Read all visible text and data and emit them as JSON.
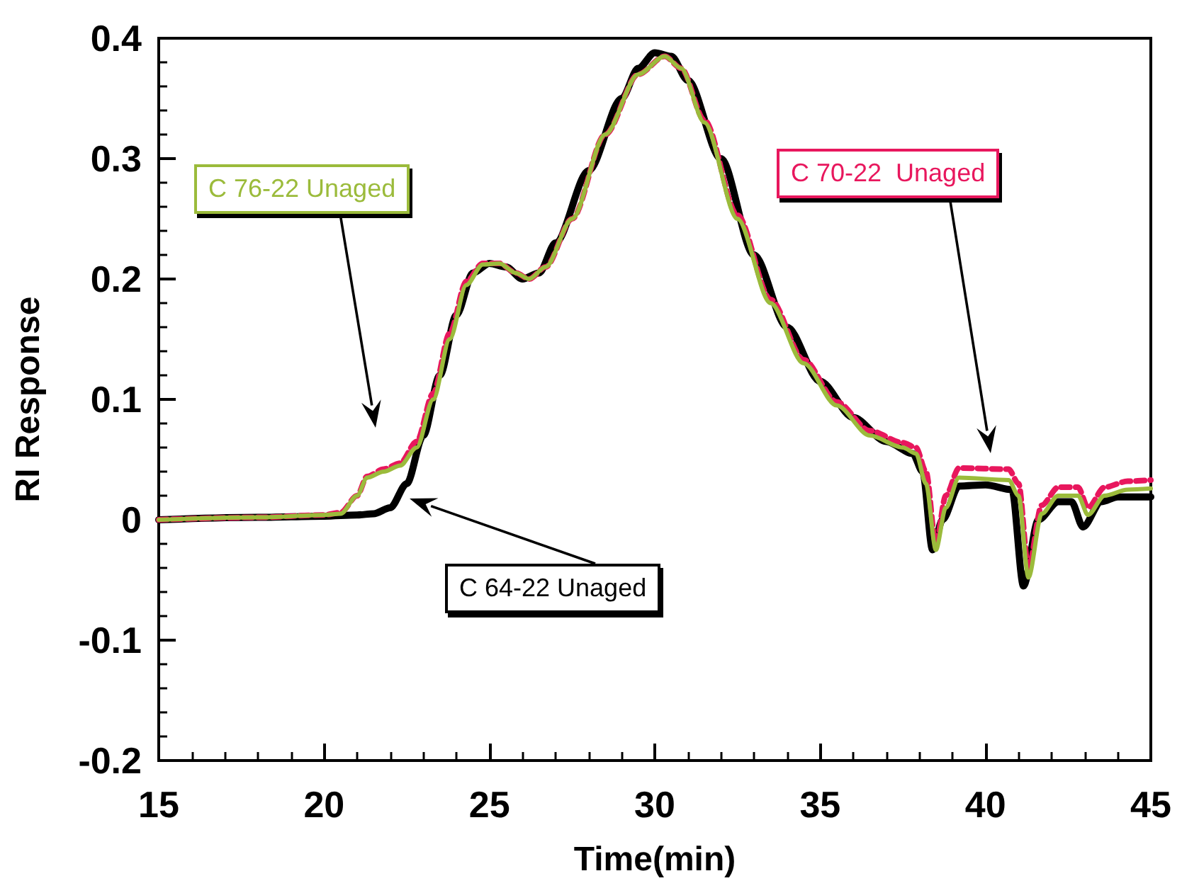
{
  "chart_data": {
    "type": "line",
    "xlabel": "Time(min)",
    "ylabel": "RI Response",
    "xlim": [
      15,
      45
    ],
    "xticks": [
      15,
      20,
      25,
      30,
      35,
      40,
      45
    ],
    "ylim": [
      -0.2,
      0.4
    ],
    "yticks": [
      -0.2,
      -0.1,
      0,
      0.1,
      0.2,
      0.3,
      0.4
    ],
    "grid": false,
    "legend": false,
    "marker": "none",
    "series": [
      {
        "name": "C 64-22 Unaged",
        "color": "#000000",
        "line_style": "solid",
        "x": [
          15,
          18,
          20,
          21,
          21.5,
          22,
          22.5,
          23,
          23.5,
          24,
          24.5,
          25,
          25.5,
          26,
          26.5,
          27,
          28,
          29,
          29.5,
          30,
          30.5,
          31,
          32,
          33,
          34,
          35,
          36,
          37,
          37.8,
          38.1,
          38.4,
          38.7,
          39.2,
          40,
          40.8,
          41.15,
          41.6,
          42.2,
          42.6,
          42.95,
          43.5,
          44,
          45
        ],
        "values": [
          0,
          0.002,
          0.003,
          0.004,
          0.005,
          0.01,
          0.03,
          0.07,
          0.12,
          0.17,
          0.205,
          0.213,
          0.21,
          0.2,
          0.205,
          0.23,
          0.29,
          0.35,
          0.375,
          0.388,
          0.385,
          0.365,
          0.3,
          0.22,
          0.16,
          0.115,
          0.085,
          0.065,
          0.055,
          0.04,
          -0.025,
          0,
          0.028,
          0.029,
          0.025,
          -0.055,
          0,
          0.015,
          0.015,
          -0.006,
          0.015,
          0.019,
          0.019
        ]
      },
      {
        "name": "C 70-22  Unaged",
        "color": "#e8175d",
        "line_style": "dashed",
        "x": [
          15,
          18,
          20,
          20.5,
          21,
          21.3,
          21.8,
          22.3,
          22.8,
          23.3,
          23.8,
          24.3,
          24.8,
          25.3,
          25.8,
          26.2,
          26.7,
          27.5,
          28.5,
          29.5,
          30.3,
          30.8,
          31.5,
          32.5,
          33.5,
          34.5,
          35.5,
          36.5,
          37.5,
          37.9,
          38.2,
          38.5,
          38.8,
          39.2,
          40.7,
          41,
          41.3,
          41.7,
          42.2,
          42.8,
          43.1,
          43.6,
          44.3,
          45
        ],
        "values": [
          0,
          0.002,
          0.004,
          0.006,
          0.02,
          0.036,
          0.042,
          0.047,
          0.065,
          0.105,
          0.155,
          0.198,
          0.213,
          0.213,
          0.205,
          0.2,
          0.21,
          0.25,
          0.32,
          0.37,
          0.385,
          0.375,
          0.332,
          0.253,
          0.183,
          0.133,
          0.098,
          0.074,
          0.064,
          0.06,
          0.04,
          -0.02,
          0.02,
          0.043,
          0.042,
          0.03,
          -0.04,
          0.012,
          0.027,
          0.027,
          0.01,
          0.027,
          0.032,
          0.033
        ]
      },
      {
        "name": "C 76-22 Unaged",
        "color": "#9bbb3b",
        "line_style": "solid",
        "x": [
          15,
          18,
          20,
          20.5,
          21,
          21.3,
          21.8,
          22.3,
          22.8,
          23.3,
          23.8,
          24.3,
          24.8,
          25.3,
          25.8,
          26.2,
          26.7,
          27.5,
          28.5,
          29.5,
          30.3,
          30.8,
          31.5,
          32.5,
          33.5,
          34.5,
          35.5,
          36.5,
          37.5,
          37.9,
          38.2,
          38.5,
          38.8,
          39.2,
          40.7,
          41,
          41.3,
          41.7,
          42.2,
          42.8,
          43.1,
          43.6,
          44.3,
          45
        ],
        "values": [
          0,
          0.002,
          0.004,
          0.005,
          0.02,
          0.035,
          0.04,
          0.045,
          0.06,
          0.1,
          0.15,
          0.195,
          0.212,
          0.213,
          0.205,
          0.2,
          0.21,
          0.25,
          0.32,
          0.37,
          0.385,
          0.375,
          0.33,
          0.25,
          0.18,
          0.13,
          0.095,
          0.07,
          0.06,
          0.055,
          0.03,
          -0.025,
          0.01,
          0.035,
          0.033,
          0.02,
          -0.048,
          0.005,
          0.02,
          0.02,
          0.004,
          0.02,
          0.025,
          0.026
        ]
      }
    ]
  }
}
